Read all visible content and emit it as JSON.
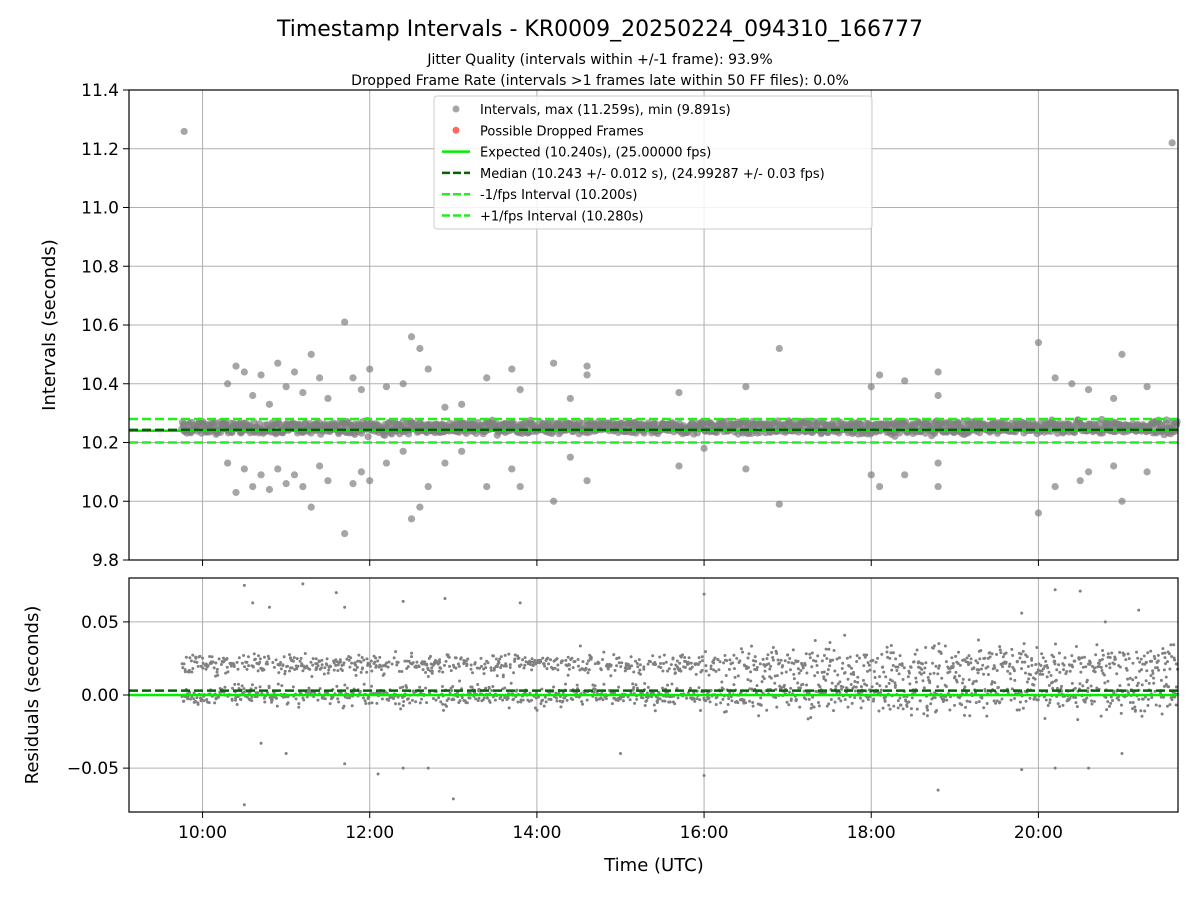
{
  "chart_data": {
    "title": "Timestamp Intervals - KR0009_20250224_094310_166777",
    "subtitle_lines": [
      "Jitter Quality (intervals within +/-1 frame): 93.9%",
      "Dropped Frame Rate (intervals >1 frames late within 50 FF files): 0.0%"
    ],
    "xlabel": "Time (UTC)",
    "x_tick_labels": [
      "10:00",
      "12:00",
      "14:00",
      "16:00",
      "18:00",
      "20:00"
    ],
    "x_tick_hours": [
      10,
      12,
      14,
      16,
      18,
      20
    ],
    "xlim_hours": [
      9.12,
      21.67
    ],
    "colors": {
      "points": "#808080",
      "dropped": "#ff4040",
      "expected": "#00ee00",
      "median": "#006400",
      "interval_bound": "#22ee22",
      "grid": "#b0b0b0"
    },
    "panels": [
      {
        "type": "scatter",
        "ylabel": "Intervals (seconds)",
        "ylim": [
          9.8,
          11.4
        ],
        "y_ticks": [
          9.8,
          10.0,
          10.2,
          10.4,
          10.6,
          10.8,
          11.0,
          11.2,
          11.4
        ],
        "y_tick_labels": [
          "9.8",
          "10.0",
          "10.2",
          "10.4",
          "10.6",
          "10.8",
          "11.0",
          "11.2",
          "11.4"
        ],
        "grid": true,
        "legend_position": "top-center",
        "legend": [
          {
            "label": "Intervals, max (11.259s), min (9.891s)",
            "kind": "marker-gray"
          },
          {
            "label": "Possible Dropped Frames",
            "kind": "marker-red"
          },
          {
            "label": "Expected (10.240s), (25.00000 fps)",
            "kind": "line-solid-green"
          },
          {
            "label": "Median (10.243 +/- 0.012 s), (24.99287 +/- 0.03 fps)",
            "kind": "line-dashed-darkgreen"
          },
          {
            "label": "-1/fps Interval (10.200s)",
            "kind": "line-dashed-green"
          },
          {
            "label": "+1/fps Interval (10.280s)",
            "kind": "line-dashed-green"
          }
        ],
        "lines": {
          "expected": 10.24,
          "median": 10.243,
          "lower": 10.2,
          "upper": 10.28
        },
        "outliers": [
          [
            9.78,
            11.259
          ],
          [
            21.6,
            11.22
          ],
          [
            10.3,
            10.4
          ],
          [
            10.4,
            10.46
          ],
          [
            10.5,
            10.44
          ],
          [
            10.6,
            10.36
          ],
          [
            10.7,
            10.43
          ],
          [
            10.8,
            10.33
          ],
          [
            10.9,
            10.47
          ],
          [
            11.0,
            10.39
          ],
          [
            11.1,
            10.44
          ],
          [
            11.2,
            10.37
          ],
          [
            11.3,
            10.5
          ],
          [
            11.4,
            10.42
          ],
          [
            11.5,
            10.35
          ],
          [
            11.7,
            10.61
          ],
          [
            11.8,
            10.42
          ],
          [
            11.9,
            10.38
          ],
          [
            12.0,
            10.45
          ],
          [
            12.2,
            10.39
          ],
          [
            12.4,
            10.4
          ],
          [
            12.5,
            10.56
          ],
          [
            12.6,
            10.52
          ],
          [
            12.7,
            10.45
          ],
          [
            12.9,
            10.32
          ],
          [
            13.1,
            10.33
          ],
          [
            13.4,
            10.42
          ],
          [
            13.7,
            10.45
          ],
          [
            13.8,
            10.38
          ],
          [
            14.2,
            10.47
          ],
          [
            14.4,
            10.35
          ],
          [
            14.6,
            10.46
          ],
          [
            14.6,
            10.43
          ],
          [
            15.7,
            10.37
          ],
          [
            16.5,
            10.39
          ],
          [
            16.9,
            10.52
          ],
          [
            18.0,
            10.39
          ],
          [
            18.1,
            10.43
          ],
          [
            18.4,
            10.41
          ],
          [
            18.8,
            10.44
          ],
          [
            18.8,
            10.36
          ],
          [
            20.0,
            10.54
          ],
          [
            20.2,
            10.42
          ],
          [
            20.4,
            10.4
          ],
          [
            20.6,
            10.38
          ],
          [
            20.9,
            10.35
          ],
          [
            21.0,
            10.5
          ],
          [
            21.3,
            10.39
          ],
          [
            10.3,
            10.13
          ],
          [
            10.4,
            10.03
          ],
          [
            10.5,
            10.11
          ],
          [
            10.6,
            10.05
          ],
          [
            10.7,
            10.09
          ],
          [
            10.8,
            10.04
          ],
          [
            10.9,
            10.11
          ],
          [
            11.0,
            10.06
          ],
          [
            11.1,
            10.09
          ],
          [
            11.2,
            10.05
          ],
          [
            11.3,
            9.98
          ],
          [
            11.4,
            10.12
          ],
          [
            11.5,
            10.07
          ],
          [
            11.7,
            9.89
          ],
          [
            11.8,
            10.06
          ],
          [
            11.9,
            10.1
          ],
          [
            12.0,
            10.07
          ],
          [
            12.2,
            10.13
          ],
          [
            12.4,
            10.17
          ],
          [
            12.5,
            9.94
          ],
          [
            12.6,
            9.98
          ],
          [
            12.7,
            10.05
          ],
          [
            12.9,
            10.13
          ],
          [
            13.1,
            10.17
          ],
          [
            13.4,
            10.05
          ],
          [
            13.7,
            10.11
          ],
          [
            13.8,
            10.05
          ],
          [
            14.2,
            10.0
          ],
          [
            14.4,
            10.15
          ],
          [
            14.6,
            10.07
          ],
          [
            15.7,
            10.12
          ],
          [
            16.0,
            10.18
          ],
          [
            16.5,
            10.11
          ],
          [
            16.9,
            9.99
          ],
          [
            18.0,
            10.09
          ],
          [
            18.1,
            10.05
          ],
          [
            18.4,
            10.09
          ],
          [
            18.8,
            10.05
          ],
          [
            18.8,
            10.13
          ],
          [
            20.0,
            9.96
          ],
          [
            20.2,
            10.05
          ],
          [
            20.5,
            10.07
          ],
          [
            20.6,
            10.1
          ],
          [
            20.9,
            10.12
          ],
          [
            21.0,
            10.0
          ],
          [
            21.3,
            10.1
          ]
        ]
      },
      {
        "type": "scatter",
        "ylabel": "Residuals (seconds)",
        "ylim": [
          -0.08,
          0.08
        ],
        "y_ticks": [
          -0.05,
          0.0,
          0.05
        ],
        "y_tick_labels": [
          "−0.05",
          "0.00",
          "0.05"
        ],
        "grid": true,
        "lines": {
          "expected": 0.0,
          "median": 0.003
        },
        "residual_bands": [
          0.0,
          0.021
        ],
        "outliers": [
          [
            10.5,
            0.075
          ],
          [
            10.6,
            0.063
          ],
          [
            10.8,
            0.06
          ],
          [
            11.2,
            0.076
          ],
          [
            11.6,
            0.07
          ],
          [
            11.7,
            0.06
          ],
          [
            12.4,
            0.064
          ],
          [
            12.9,
            0.066
          ],
          [
            13.8,
            0.063
          ],
          [
            16.0,
            0.069
          ],
          [
            19.8,
            0.056
          ],
          [
            20.2,
            0.072
          ],
          [
            20.5,
            0.071
          ],
          [
            20.8,
            0.05
          ],
          [
            21.2,
            0.058
          ],
          [
            10.5,
            -0.075
          ],
          [
            11.0,
            -0.04
          ],
          [
            11.7,
            -0.047
          ],
          [
            12.1,
            -0.054
          ],
          [
            12.4,
            -0.05
          ],
          [
            12.7,
            -0.05
          ],
          [
            13.0,
            -0.071
          ],
          [
            15.0,
            -0.04
          ],
          [
            16.0,
            -0.055
          ],
          [
            18.8,
            -0.065
          ],
          [
            19.8,
            -0.051
          ],
          [
            20.2,
            -0.05
          ],
          [
            20.6,
            -0.05
          ],
          [
            21.0,
            -0.04
          ],
          [
            10.7,
            -0.033
          ]
        ]
      }
    ]
  }
}
